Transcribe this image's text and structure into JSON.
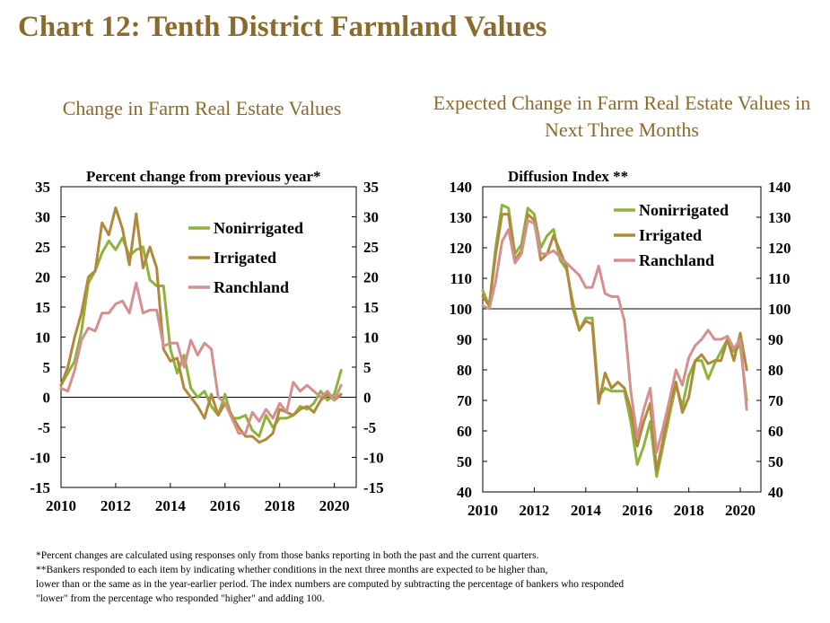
{
  "title": "Chart 12: Tenth District Farmland Values",
  "colors": {
    "title": "#8a6a2d",
    "nonirrigated": "#8db33b",
    "irrigated": "#b08a3a",
    "ranchland": "#d4908e"
  },
  "chart_data": [
    {
      "type": "line",
      "title": "Change in Farm Real Estate Values",
      "ylabel": "Percent change from previous year*",
      "ylim": [
        -15,
        35
      ],
      "yticks": [
        -15,
        -10,
        -5,
        0,
        5,
        10,
        15,
        20,
        25,
        30,
        35
      ],
      "xlim": [
        2010,
        2020.8
      ],
      "xticks": [
        2010,
        2012,
        2014,
        2016,
        2018,
        2020
      ],
      "grid": false,
      "legend_position": "upper right inside",
      "series": [
        {
          "name": "Nonirrigated",
          "color": "#8db33b",
          "x": [
            2010,
            2010.25,
            2010.5,
            2010.75,
            2011,
            2011.25,
            2011.5,
            2011.75,
            2012,
            2012.25,
            2012.5,
            2012.75,
            2013,
            2013.25,
            2013.5,
            2013.75,
            2014,
            2014.25,
            2014.5,
            2014.75,
            2015,
            2015.25,
            2015.5,
            2015.75,
            2016,
            2016.25,
            2016.5,
            2016.75,
            2017,
            2017.25,
            2017.5,
            2017.75,
            2018,
            2018.25,
            2018.5,
            2018.75,
            2019,
            2019.25,
            2019.5,
            2019.75,
            2020,
            2020.25
          ],
          "values": [
            2,
            4,
            6,
            11,
            19,
            21,
            24,
            26,
            24.5,
            26.5,
            23.5,
            24.5,
            25,
            19.5,
            18.5,
            18.5,
            8,
            4,
            7,
            1.5,
            0,
            1,
            -1.5,
            -3,
            0.5,
            -3.5,
            -3.5,
            -3,
            -5.5,
            -6.5,
            -3,
            -5,
            -3.5,
            -3.5,
            -3,
            -1.5,
            -2,
            -1,
            1,
            -0.5,
            0.5,
            4.5
          ]
        },
        {
          "name": "Irrigated",
          "color": "#b08a3a",
          "x": [
            2010,
            2010.25,
            2010.5,
            2010.75,
            2011,
            2011.25,
            2011.5,
            2011.75,
            2012,
            2012.25,
            2012.5,
            2012.75,
            2013,
            2013.25,
            2013.5,
            2013.75,
            2014,
            2014.25,
            2014.5,
            2014.75,
            2015,
            2015.25,
            2015.5,
            2015.75,
            2016,
            2016.25,
            2016.5,
            2016.75,
            2017,
            2017.25,
            2017.5,
            2017.75,
            2018,
            2018.25,
            2018.5,
            2018.75,
            2019,
            2019.25,
            2019.5,
            2019.75,
            2020,
            2020.25
          ],
          "values": [
            2,
            5,
            10,
            14,
            20,
            21,
            29,
            27,
            31.5,
            28,
            22,
            30.5,
            21.5,
            25,
            21.5,
            8,
            6,
            6.5,
            1.5,
            0,
            -1.5,
            -3.5,
            0.5,
            -3,
            -1,
            -3,
            -5,
            -6.5,
            -6.5,
            -7.5,
            -7,
            -6,
            -2,
            -2.5,
            -3,
            -2,
            -1.5,
            -2.5,
            -0.5,
            0.5,
            -0.5,
            0.5
          ]
        },
        {
          "name": "Ranchland",
          "color": "#d4908e",
          "x": [
            2010,
            2010.25,
            2010.5,
            2010.75,
            2011,
            2011.25,
            2011.5,
            2011.75,
            2012,
            2012.25,
            2012.5,
            2012.75,
            2013,
            2013.25,
            2013.5,
            2013.75,
            2014,
            2014.25,
            2014.5,
            2014.75,
            2015,
            2015.25,
            2015.5,
            2015.75,
            2016,
            2016.25,
            2016.5,
            2016.75,
            2017,
            2017.25,
            2017.5,
            2017.75,
            2018,
            2018.25,
            2018.5,
            2018.75,
            2019,
            2019.25,
            2019.5,
            2019.75,
            2020,
            2020.25
          ],
          "values": [
            1.5,
            1,
            4.5,
            9.5,
            11.5,
            11,
            14,
            14,
            15.5,
            16,
            14,
            19,
            14,
            14.5,
            14.5,
            8.5,
            9,
            9,
            5,
            9.5,
            7,
            9,
            8,
            0,
            -1,
            -3.5,
            -6,
            -6,
            -2.5,
            -4,
            -2,
            -3.5,
            -1,
            -2.5,
            2.5,
            1,
            2,
            1,
            0,
            1,
            -0.5,
            2
          ]
        }
      ]
    },
    {
      "type": "line",
      "title": "Expected Change in Farm Real Estate Values in Next Three Months",
      "ylabel": "Diffusion Index **",
      "ylim": [
        40,
        140
      ],
      "yticks": [
        40,
        50,
        60,
        70,
        80,
        90,
        100,
        110,
        120,
        130,
        140
      ],
      "xlim": [
        2010,
        2020.8
      ],
      "xticks": [
        2010,
        2012,
        2014,
        2016,
        2018,
        2020
      ],
      "reference_line": 100,
      "grid": false,
      "legend_position": "upper right inside",
      "series": [
        {
          "name": "Nonirrigated",
          "color": "#8db33b",
          "x": [
            2010,
            2010.25,
            2010.5,
            2010.75,
            2011,
            2011.25,
            2011.5,
            2011.75,
            2012,
            2012.25,
            2012.5,
            2012.75,
            2013,
            2013.25,
            2013.5,
            2013.75,
            2014,
            2014.25,
            2014.5,
            2014.75,
            2015,
            2015.25,
            2015.5,
            2015.75,
            2016,
            2016.25,
            2016.5,
            2016.75,
            2017,
            2017.25,
            2017.5,
            2017.75,
            2018,
            2018.25,
            2018.5,
            2018.75,
            2019,
            2019.25,
            2019.5,
            2019.75,
            2020,
            2020.25
          ],
          "values": [
            106,
            101,
            120,
            134,
            133,
            118,
            121,
            133,
            131,
            120,
            124,
            126,
            116,
            113,
            102,
            93,
            97,
            97,
            71,
            74,
            73,
            73,
            73,
            63,
            49,
            55,
            63,
            45,
            55,
            65,
            75,
            68,
            78,
            83,
            83,
            77,
            82,
            86,
            90,
            86,
            88,
            70
          ]
        },
        {
          "name": "Irrigated",
          "color": "#b08a3a",
          "x": [
            2010,
            2010.25,
            2010.5,
            2010.75,
            2011,
            2011.25,
            2011.5,
            2011.75,
            2012,
            2012.25,
            2012.5,
            2012.75,
            2013,
            2013.25,
            2013.5,
            2013.75,
            2014,
            2014.25,
            2014.5,
            2014.75,
            2015,
            2015.25,
            2015.5,
            2015.75,
            2016,
            2016.25,
            2016.5,
            2016.75,
            2017,
            2017.25,
            2017.5,
            2017.75,
            2018,
            2018.25,
            2018.5,
            2018.75,
            2019,
            2019.25,
            2019.5,
            2019.75,
            2020,
            2020.25
          ],
          "values": [
            104,
            101,
            118,
            131,
            131,
            116,
            119,
            131,
            129,
            116,
            118,
            124,
            119,
            114,
            100,
            93,
            96,
            95,
            69,
            79,
            74,
            76,
            74,
            67,
            55,
            63,
            69,
            47,
            57,
            68,
            76,
            66,
            71,
            83,
            85,
            82,
            83,
            83,
            90,
            83,
            92,
            80
          ]
        },
        {
          "name": "Ranchland",
          "color": "#d4908e",
          "x": [
            2010,
            2010.25,
            2010.5,
            2010.75,
            2011,
            2011.25,
            2011.5,
            2011.75,
            2012,
            2012.25,
            2012.5,
            2012.75,
            2013,
            2013.25,
            2013.5,
            2013.75,
            2014,
            2014.25,
            2014.5,
            2014.75,
            2015,
            2015.25,
            2015.5,
            2015.75,
            2016,
            2016.25,
            2016.5,
            2016.75,
            2017,
            2017.25,
            2017.5,
            2017.75,
            2018,
            2018.25,
            2018.5,
            2018.75,
            2019,
            2019.25,
            2019.5,
            2019.75,
            2020,
            2020.25
          ],
          "values": [
            101,
            100,
            109,
            122,
            126,
            115,
            118,
            129,
            128,
            118,
            118,
            119,
            117,
            115,
            113,
            111,
            107,
            107,
            114,
            105,
            104,
            104,
            96,
            73,
            58,
            67,
            74,
            53,
            61,
            70,
            80,
            75,
            84,
            88,
            90,
            93,
            90,
            90,
            91,
            87,
            90,
            67
          ]
        }
      ]
    }
  ],
  "footnotes": [
    "*Percent changes are calculated using responses only from those banks reporting in both the past and the current quarters.",
    "**Bankers responded to each item by indicating whether conditions in the next three months are expected to be higher than,",
    "lower than or the same as in the year-earlier period.  The index numbers are computed by subtracting the percentage of bankers who responded",
    "\"lower\" from the percentage who responded \"higher\" and adding 100."
  ]
}
